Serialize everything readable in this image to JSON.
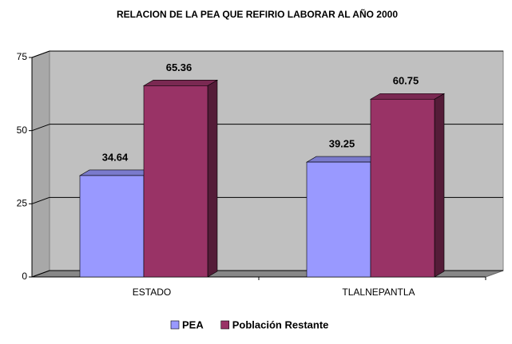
{
  "chart_data": {
    "type": "bar3d",
    "title": "RELACION DE LA PEA QUE REFIRIO LABORAR AL AÑO 2000",
    "categories": [
      "ESTADO",
      "TLALNEPANTLA"
    ],
    "series": [
      {
        "name": "PEA",
        "color": "#9999ff",
        "values": [
          34.64,
          39.25
        ]
      },
      {
        "name": "Población Restante",
        "color": "#993366",
        "values": [
          65.36,
          60.75
        ]
      }
    ],
    "ylim": [
      0,
      75
    ],
    "yticks": [
      0,
      25,
      50,
      75
    ],
    "grid": true,
    "legend": "bottom"
  }
}
